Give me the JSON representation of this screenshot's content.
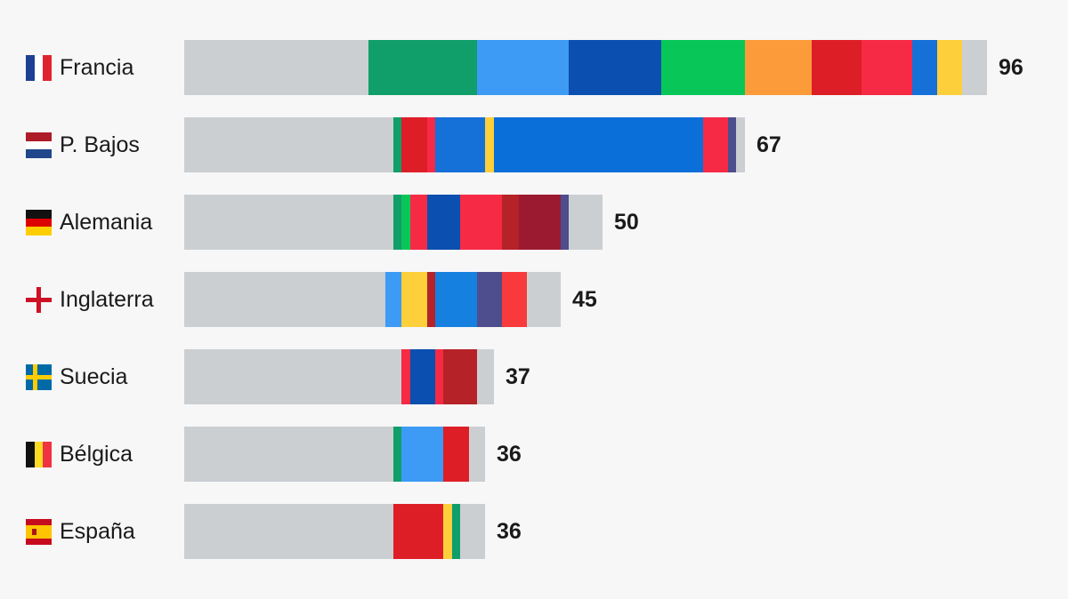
{
  "chart_data": {
    "type": "bar",
    "orientation": "horizontal",
    "stacked": true,
    "grid": false,
    "title": "",
    "xlabel": "",
    "ylabel": "",
    "xlim": [
      0,
      96
    ],
    "categories": [
      "Francia",
      "P. Bajos",
      "Alemania",
      "Inglaterra",
      "Suecia",
      "Bélgica",
      "España"
    ],
    "totals": [
      96,
      67,
      50,
      45,
      37,
      36,
      36
    ],
    "flags": [
      "france-flag-icon",
      "netherlands-flag-icon",
      "germany-flag-icon",
      "england-flag-icon",
      "sweden-flag-icon",
      "belgium-flag-icon",
      "spain-flag-icon"
    ],
    "rows": [
      {
        "country": "Francia",
        "total": 96,
        "flag": "france-flag-icon",
        "segments": [
          {
            "value": 22,
            "color": "#cbcfd2"
          },
          {
            "value": 13,
            "color": "#109e6b"
          },
          {
            "value": 11,
            "color": "#3d9af5"
          },
          {
            "value": 11,
            "color": "#0b4fb0"
          },
          {
            "value": 10,
            "color": "#08c758"
          },
          {
            "value": 8,
            "color": "#fb9b3a"
          },
          {
            "value": 6,
            "color": "#de1e27"
          },
          {
            "value": 6,
            "color": "#f62a44"
          },
          {
            "value": 3,
            "color": "#1570d8"
          },
          {
            "value": 3,
            "color": "#fdcf3a"
          },
          {
            "value": 3,
            "color": "#cbcfd2"
          }
        ]
      },
      {
        "country": "P. Bajos",
        "total": 67,
        "flag": "netherlands-flag-icon",
        "segments": [
          {
            "value": 25,
            "color": "#cbcfd2"
          },
          {
            "value": 1,
            "color": "#109e6b"
          },
          {
            "value": 3,
            "color": "#de1e27"
          },
          {
            "value": 1,
            "color": "#f62a44"
          },
          {
            "value": 6,
            "color": "#1570d8"
          },
          {
            "value": 1,
            "color": "#fdcf3a"
          },
          {
            "value": 25,
            "color": "#0a6fd9"
          },
          {
            "value": 3,
            "color": "#f62a44"
          },
          {
            "value": 1,
            "color": "#4e4d8d"
          },
          {
            "value": 1,
            "color": "#cbcfd2"
          }
        ]
      },
      {
        "country": "Alemania",
        "total": 50,
        "flag": "germany-flag-icon",
        "segments": [
          {
            "value": 25,
            "color": "#cbcfd2"
          },
          {
            "value": 1,
            "color": "#109e6b"
          },
          {
            "value": 1,
            "color": "#08c758"
          },
          {
            "value": 2,
            "color": "#f62a44"
          },
          {
            "value": 4,
            "color": "#0b4fb0"
          },
          {
            "value": 5,
            "color": "#f62a44"
          },
          {
            "value": 2,
            "color": "#b52227"
          },
          {
            "value": 5,
            "color": "#9c1a30"
          },
          {
            "value": 1,
            "color": "#4e4d8d"
          },
          {
            "value": 4,
            "color": "#cbcfd2"
          }
        ]
      },
      {
        "country": "Inglaterra",
        "total": 45,
        "flag": "england-flag-icon",
        "segments": [
          {
            "value": 24,
            "color": "#cbcfd2"
          },
          {
            "value": 2,
            "color": "#3d9af5"
          },
          {
            "value": 3,
            "color": "#fdcf3a"
          },
          {
            "value": 1,
            "color": "#b52227"
          },
          {
            "value": 5,
            "color": "#1580e0"
          },
          {
            "value": 3,
            "color": "#4e4d8d"
          },
          {
            "value": 3,
            "color": "#f83a3c"
          },
          {
            "value": 4,
            "color": "#cbcfd2"
          }
        ]
      },
      {
        "country": "Suecia",
        "total": 37,
        "flag": "sweden-flag-icon",
        "segments": [
          {
            "value": 26,
            "color": "#cbcfd2"
          },
          {
            "value": 1,
            "color": "#f62a44"
          },
          {
            "value": 3,
            "color": "#0b4fb0"
          },
          {
            "value": 1,
            "color": "#f62a44"
          },
          {
            "value": 4,
            "color": "#b52227"
          },
          {
            "value": 2,
            "color": "#cbcfd2"
          }
        ]
      },
      {
        "country": "Bélgica",
        "total": 36,
        "flag": "belgium-flag-icon",
        "segments": [
          {
            "value": 25,
            "color": "#cbcfd2"
          },
          {
            "value": 1,
            "color": "#109e6b"
          },
          {
            "value": 5,
            "color": "#3d9af5"
          },
          {
            "value": 3,
            "color": "#de1e27"
          },
          {
            "value": 2,
            "color": "#cbcfd2"
          }
        ]
      },
      {
        "country": "España",
        "total": 36,
        "flag": "spain-flag-icon",
        "segments": [
          {
            "value": 25,
            "color": "#cbcfd2"
          },
          {
            "value": 6,
            "color": "#de1e27"
          },
          {
            "value": 1,
            "color": "#fdcf3a"
          },
          {
            "value": 1,
            "color": "#109e6b"
          },
          {
            "value": 3,
            "color": "#cbcfd2"
          }
        ]
      }
    ]
  }
}
